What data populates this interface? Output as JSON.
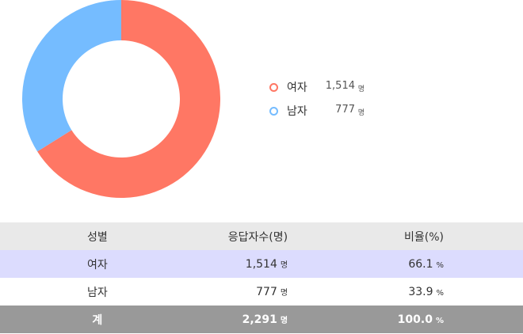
{
  "chart_data": {
    "type": "pie",
    "categories": [
      "여자",
      "남자"
    ],
    "values": [
      1514,
      777
    ],
    "colors": [
      "#ff7764",
      "#75bcff"
    ],
    "legend_placement": "right",
    "legend_unit": "명"
  },
  "legend": {
    "items": [
      {
        "label": "여자",
        "value": "1,514",
        "unit": "명",
        "color": "#ff7764"
      },
      {
        "label": "남자",
        "value": "777",
        "unit": "명",
        "color": "#75bcff"
      }
    ]
  },
  "table": {
    "headers": {
      "gender": "성별",
      "respondents": "응답자수(명)",
      "ratio": "비율(%)"
    },
    "rows": [
      {
        "gender": "여자",
        "count": "1,514",
        "count_unit": "명",
        "ratio": "66.1",
        "ratio_unit": "%"
      },
      {
        "gender": "남자",
        "count": "777",
        "count_unit": "명",
        "ratio": "33.9",
        "ratio_unit": "%"
      }
    ],
    "total": {
      "label": "계",
      "count": "2,291",
      "count_unit": "명",
      "ratio": "100.0",
      "ratio_unit": "%"
    }
  }
}
